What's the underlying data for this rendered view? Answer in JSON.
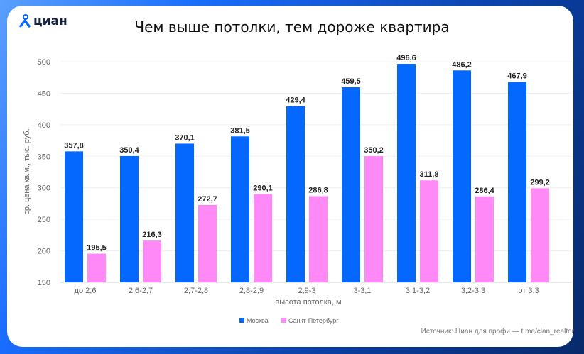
{
  "brand": {
    "logo_text": "циан",
    "accent_color": "#0468FF"
  },
  "chart_data": {
    "type": "bar",
    "title": "Чем выше потолки, тем дороже квартира",
    "xlabel": "высота потолка, м",
    "ylabel": "ср. цена кв.м., тыс. руб.",
    "ylim": [
      150,
      500
    ],
    "yticks": [
      "150",
      "200",
      "250",
      "300",
      "350",
      "400",
      "450",
      "500"
    ],
    "grid": true,
    "legend_position": "bottom-left",
    "categories": [
      "до 2,6",
      "2,6-2,7",
      "2,7-2,8",
      "2,8-2,9",
      "2,9-3",
      "3-3,1",
      "3,1-3,2",
      "3,2-3,3",
      "от 3,3"
    ],
    "series": [
      {
        "name": "Москва",
        "color": "#0468FF",
        "values": [
          357.8,
          350.4,
          370.1,
          381.5,
          429.4,
          459.5,
          496.6,
          486.2,
          467.9
        ],
        "labels": [
          "357,8",
          "350,4",
          "370,1",
          "381,5",
          "429,4",
          "459,5",
          "496,6",
          "486,2",
          "467,9"
        ]
      },
      {
        "name": "Санкт-Петербург",
        "color": "#FF8AF7",
        "values": [
          195.5,
          216.3,
          272.7,
          290.1,
          286.8,
          350.2,
          311.8,
          286.4,
          299.2
        ],
        "labels": [
          "195,5",
          "216,3",
          "272,7",
          "290,1",
          "286,8",
          "350,2",
          "311,8",
          "286,4",
          "299,2"
        ]
      }
    ]
  },
  "footer": {
    "source": "Источник: Циан для профи — t.me/cian_realtor"
  }
}
